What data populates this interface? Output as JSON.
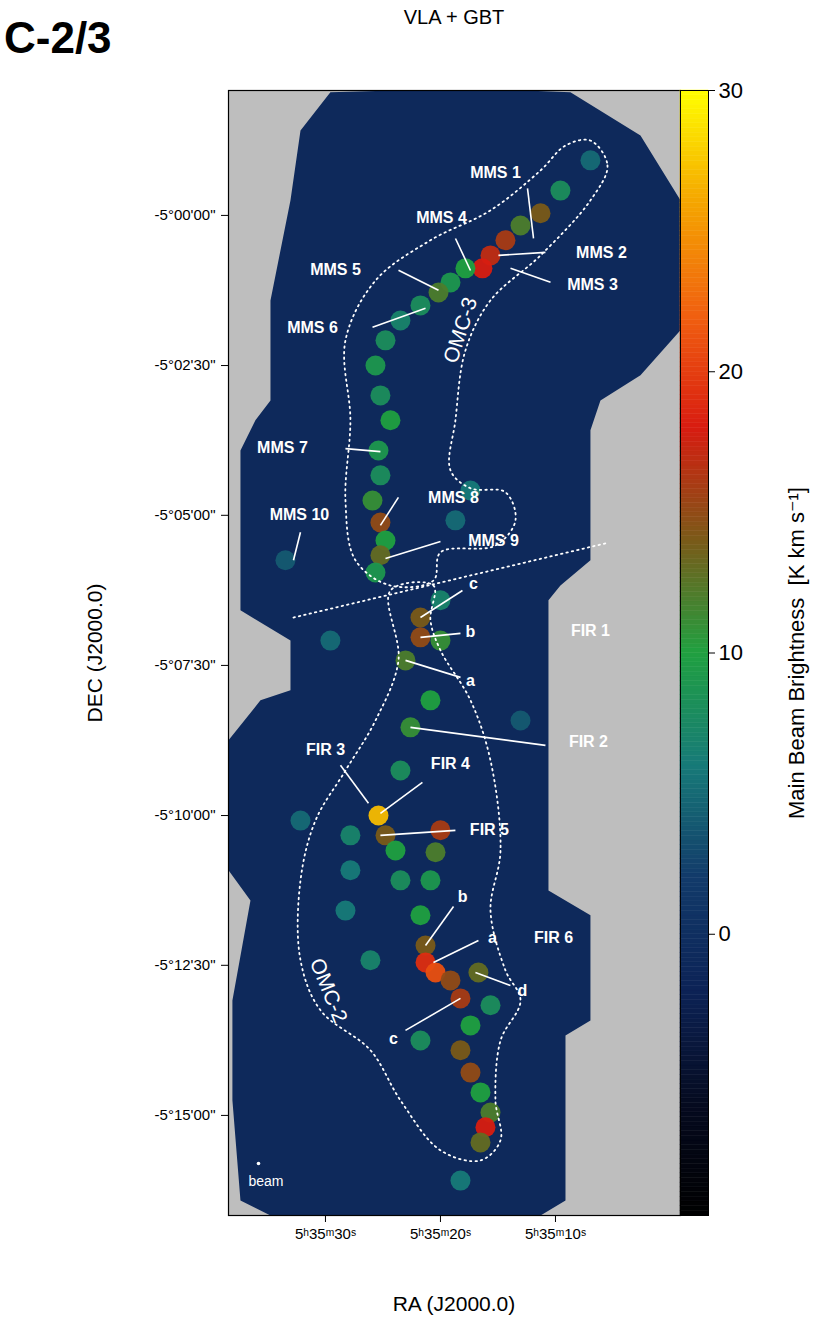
{
  "chart_data": {
    "type": "heatmap",
    "title": "VLA + GBT",
    "corner_title": "C-2/3",
    "x_label": "RA (J2000.0)",
    "y_label": "DEC (J2000.0)",
    "xlim": [
      38.43,
      -0.87
    ],
    "ylim": [
      -5.2778,
      -4.9653
    ],
    "xticks": [
      {
        "value": 30,
        "label": "5ʰ35ᵐ30ˢ"
      },
      {
        "value": 20,
        "label": "5ʰ35ᵐ20ˢ"
      },
      {
        "value": 10,
        "label": "5ʰ35ᵐ10ˢ"
      }
    ],
    "yticks": [
      {
        "value": -5,
        "label": "-5°00'00\""
      },
      {
        "value": -5.0417,
        "label": "-5°02'30\""
      },
      {
        "value": -5.0833,
        "label": "-5°05'00\""
      },
      {
        "value": -5.125,
        "label": "-5°07'30\""
      },
      {
        "value": -5.1667,
        "label": "-5°10'00\""
      },
      {
        "value": -5.2083,
        "label": "-5°12'30\""
      },
      {
        "value": -5.25,
        "label": "-5°15'00\""
      }
    ],
    "grid": false,
    "colorbar": {
      "range": [
        -10,
        30
      ],
      "ticks": [
        0,
        10,
        20,
        30
      ],
      "label": "Main Beam Brightness  [K km s⁻¹]"
    },
    "coverage": [
      [
        29.57,
        -4.9658
      ],
      [
        17.39,
        -4.9647
      ],
      [
        8.7,
        -4.9658
      ],
      [
        2.61,
        -4.9778
      ],
      [
        -0.87,
        -4.9958
      ],
      [
        -0.87,
        -5.0319
      ],
      [
        2.61,
        -5.0444
      ],
      [
        6.09,
        -5.0514
      ],
      [
        6.96,
        -5.0597
      ],
      [
        6.96,
        -5.0958
      ],
      [
        9.57,
        -5.1028
      ],
      [
        10.61,
        -5.1069
      ],
      [
        10.61,
        -5.1875
      ],
      [
        6.96,
        -5.1944
      ],
      [
        6.96,
        -5.2236
      ],
      [
        9.13,
        -5.2278
      ],
      [
        9.13,
        -5.2736
      ],
      [
        11.3,
        -5.2778
      ],
      [
        34.78,
        -5.2778
      ],
      [
        37.39,
        -5.2736
      ],
      [
        38.09,
        -5.2458
      ],
      [
        38.09,
        -5.2181
      ],
      [
        36.52,
        -5.1903
      ],
      [
        38.43,
        -5.1819
      ],
      [
        38.43,
        -5.1458
      ],
      [
        35.65,
        -5.1347
      ],
      [
        33.04,
        -5.1319
      ],
      [
        33.04,
        -5.1181
      ],
      [
        37.39,
        -5.1097
      ],
      [
        37.39,
        -5.0653
      ],
      [
        36.09,
        -5.0569
      ],
      [
        34.78,
        -5.0514
      ],
      [
        34.78,
        -5.0236
      ],
      [
        33.04,
        -4.9958
      ],
      [
        32.17,
        -4.9764
      ]
    ],
    "emission": {
      "x": [
        6.96,
        9.57,
        11.3,
        13.04,
        14.35,
        15.65,
        16.35,
        17.83,
        19.13,
        20.17,
        21.74,
        23.48,
        24.78,
        25.65,
        25.22,
        24.35,
        25.39,
        25.22,
        25.91,
        25.22,
        24.78,
        25.22,
        25.65,
        17.39,
        18.7,
        20.0,
        20.0,
        21.74,
        21.74,
        23.04,
        20.87,
        22.61,
        23.48,
        25.39,
        24.78,
        23.91,
        27.83,
        20.0,
        20.43,
        20.87,
        21.74,
        21.3,
        21.3,
        20.43,
        19.13,
        18.26,
        16.7,
        15.65,
        17.39,
        18.26,
        17.39,
        16.52,
        15.65,
        16.09,
        16.52,
        23.48,
        27.83,
        32.17,
        13.04,
        28.26,
        26.09,
        21.74,
        18.26,
        29.57,
        33.48
      ],
      "y": [
        -4.9847,
        -4.9931,
        -4.9994,
        -5.0028,
        -5.0069,
        -5.0111,
        -5.0147,
        -5.0147,
        -5.0186,
        -5.0214,
        -5.025,
        -5.0292,
        -5.0347,
        -5.0417,
        -5.05,
        -5.0569,
        -5.0653,
        -5.0722,
        -5.0792,
        -5.0853,
        -5.0903,
        -5.0944,
        -5.0992,
        -5.0764,
        -5.0847,
        -5.1069,
        -5.1181,
        -5.1117,
        -5.1172,
        -5.1236,
        -5.1347,
        -5.1422,
        -5.1542,
        -5.1667,
        -5.1722,
        -5.1764,
        -5.1722,
        -5.1708,
        -5.1769,
        -5.1847,
        -5.1944,
        -5.2028,
        -5.2075,
        -5.2103,
        -5.2125,
        -5.2175,
        -5.2103,
        -5.2194,
        -5.225,
        -5.2319,
        -5.2381,
        -5.2436,
        -5.2492,
        -5.2533,
        -5.2575,
        -5.1847,
        -5.1819,
        -5.1681,
        -5.1403,
        -5.1931,
        -5.2069,
        -5.2292,
        -5.2681,
        -5.1181,
        -5.0958
      ],
      "values": [
        5,
        8,
        14,
        12,
        16,
        17,
        18,
        10,
        9,
        12,
        8,
        7,
        8,
        9,
        8,
        10,
        9,
        8,
        11,
        15,
        10,
        13,
        9,
        6,
        5,
        7,
        11,
        14,
        15,
        12,
        10,
        11,
        8,
        27,
        14,
        10,
        7,
        16,
        12,
        9,
        10,
        14,
        19,
        21,
        15,
        16,
        13,
        8,
        10,
        14,
        15,
        10,
        12,
        18,
        13,
        8,
        6,
        5,
        4,
        6,
        7,
        8,
        6,
        5,
        4
      ]
    },
    "regions": [
      {
        "name": "OMC-3",
        "label_position": [
          18.26,
          -5.0319
        ],
        "outline": [
          [
            6.96,
            -4.9792
          ],
          [
            5.48,
            -4.9861
          ],
          [
            6.96,
            -4.9958
          ],
          [
            11.3,
            -5.0111
          ],
          [
            15.65,
            -5.0236
          ],
          [
            17.83,
            -5.0375
          ],
          [
            18.7,
            -5.0569
          ],
          [
            19.13,
            -5.0708
          ],
          [
            17.39,
            -5.0758
          ],
          [
            14.35,
            -5.0769
          ],
          [
            13.48,
            -5.0847
          ],
          [
            15.22,
            -5.0917
          ],
          [
            20.0,
            -5.0936
          ],
          [
            20.61,
            -5.1014
          ],
          [
            24.35,
            -5.1028
          ],
          [
            27.39,
            -5.0958
          ],
          [
            28.26,
            -5.0792
          ],
          [
            27.83,
            -5.0569
          ],
          [
            28.26,
            -5.0347
          ],
          [
            25.65,
            -5.0181
          ],
          [
            20.87,
            -5.0069
          ],
          [
            15.65,
            -4.9986
          ],
          [
            11.3,
            -4.9875
          ],
          [
            9.13,
            -4.9806
          ]
        ]
      },
      {
        "name": "OMC-2",
        "label_position": [
          29.74,
          -5.2153
        ],
        "outline": [
          [
            24.35,
            -5.1042
          ],
          [
            20.61,
            -5.1028
          ],
          [
            20.87,
            -5.1125
          ],
          [
            20.0,
            -5.1208
          ],
          [
            17.39,
            -5.1347
          ],
          [
            15.65,
            -5.1514
          ],
          [
            14.78,
            -5.1764
          ],
          [
            15.65,
            -5.1931
          ],
          [
            14.35,
            -5.2097
          ],
          [
            13.04,
            -5.2181
          ],
          [
            14.78,
            -5.2292
          ],
          [
            15.22,
            -5.2458
          ],
          [
            14.78,
            -5.2569
          ],
          [
            16.52,
            -5.2625
          ],
          [
            20.0,
            -5.2597
          ],
          [
            23.48,
            -5.2458
          ],
          [
            26.09,
            -5.2319
          ],
          [
            30.43,
            -5.2208
          ],
          [
            32.17,
            -5.2069
          ],
          [
            32.17,
            -5.1847
          ],
          [
            30.87,
            -5.1681
          ],
          [
            28.26,
            -5.1542
          ],
          [
            25.65,
            -5.1403
          ],
          [
            23.65,
            -5.1236
          ]
        ]
      }
    ],
    "boundary": [
      [
        32.78,
        -5.1117
      ],
      [
        5.65,
        -5.0911
      ]
    ],
    "annotations": [
      {
        "text": "MMS 1",
        "x": 11.91,
        "y": -5.0064
      },
      {
        "text": "MMS 4",
        "x": 17.39,
        "y": -5.0153
      },
      {
        "text": "MMS 2",
        "x": 14.96,
        "y": -5.0111
      },
      {
        "text": "MMS 3",
        "x": 13.91,
        "y": -5.0147
      },
      {
        "text": "MMS 5",
        "x": 20.17,
        "y": -5.0208
      },
      {
        "text": "MMS 6",
        "x": 21.3,
        "y": -5.0258
      },
      {
        "text": "MMS 7",
        "x": 25.22,
        "y": -5.0656
      },
      {
        "text": "MMS 8",
        "x": 25.22,
        "y": -5.0861
      },
      {
        "text": "MMS 9",
        "x": 24.78,
        "y": -5.0953
      },
      {
        "text": "MMS 10",
        "x": 32.78,
        "y": -5.0958
      },
      {
        "text": "FIR 1",
        "x": 6.96,
        "y": -5.1153
      },
      {
        "text": "a",
        "x": 23.04,
        "y": -5.1236
      },
      {
        "text": "b",
        "x": 21.74,
        "y": -5.1172
      },
      {
        "text": "c",
        "x": 21.74,
        "y": -5.1117
      },
      {
        "text": "FIR 2",
        "x": 22.61,
        "y": -5.1422
      },
      {
        "text": "FIR 3",
        "x": 26.26,
        "y": -5.1633
      },
      {
        "text": "FIR 4",
        "x": 25.22,
        "y": -5.1661
      },
      {
        "text": "FIR 5",
        "x": 25.22,
        "y": -5.1722
      },
      {
        "text": "FIR 6",
        "x": 10.17,
        "y": -5.2008
      },
      {
        "text": "b",
        "x": 21.3,
        "y": -5.2028
      },
      {
        "text": "a",
        "x": 20.61,
        "y": -5.2075
      },
      {
        "text": "c",
        "x": 18.26,
        "y": -5.2175
      },
      {
        "text": "d",
        "x": 16.96,
        "y": -5.2103
      }
    ],
    "beam_label": "beam"
  }
}
